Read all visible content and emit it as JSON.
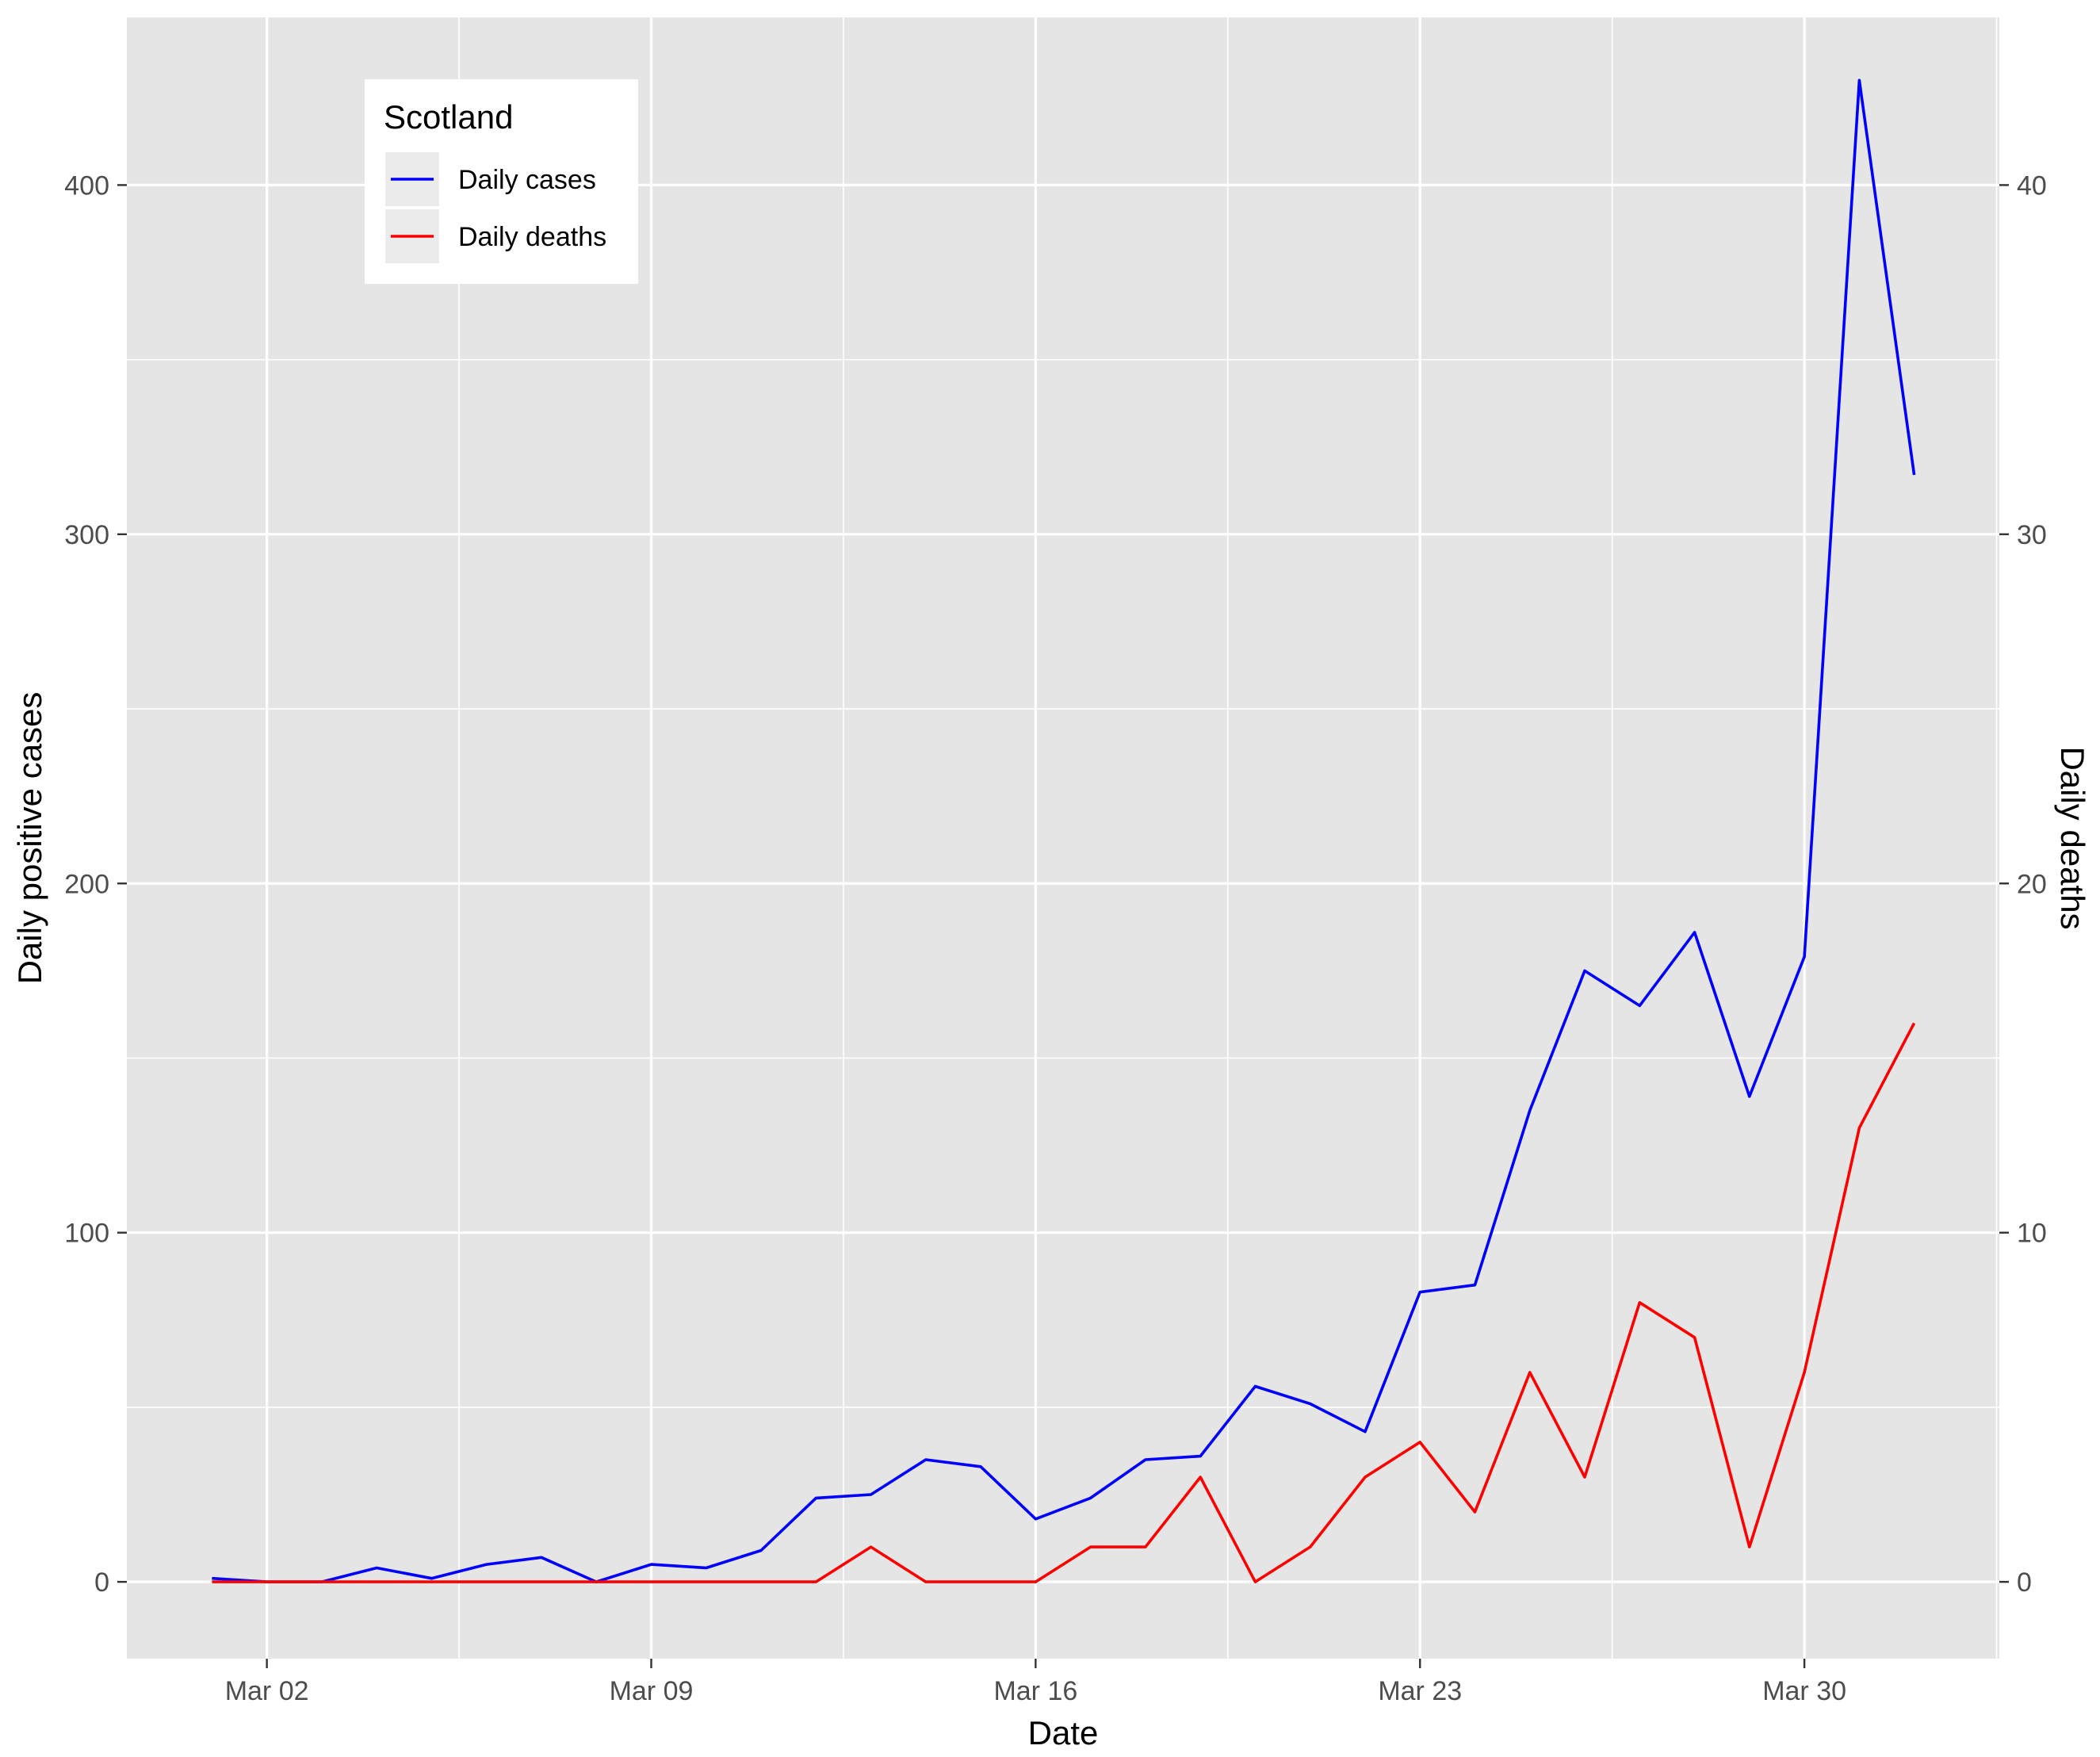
{
  "chart_data": {
    "type": "line",
    "title": "",
    "xlabel": "Date",
    "ylabel": "Daily positive cases",
    "y2label": "Daily deaths",
    "x_tick_labels": [
      "Mar 02",
      "Mar 09",
      "Mar 16",
      "Mar 23",
      "Mar 30"
    ],
    "y_ticks": [
      0,
      100,
      200,
      300,
      400
    ],
    "y2_ticks": [
      0,
      10,
      20,
      30,
      40
    ],
    "ylim": [
      -22,
      448
    ],
    "y2lim": [
      -2.2,
      44.8
    ],
    "grid": true,
    "legend": {
      "title": "Scotland",
      "position": "top-left",
      "entries": [
        "Daily cases",
        "Daily deaths"
      ]
    },
    "x": [
      "2020-03-01",
      "2020-03-02",
      "2020-03-03",
      "2020-03-04",
      "2020-03-05",
      "2020-03-06",
      "2020-03-07",
      "2020-03-08",
      "2020-03-09",
      "2020-03-10",
      "2020-03-11",
      "2020-03-12",
      "2020-03-13",
      "2020-03-14",
      "2020-03-15",
      "2020-03-16",
      "2020-03-17",
      "2020-03-18",
      "2020-03-19",
      "2020-03-20",
      "2020-03-21",
      "2020-03-22",
      "2020-03-23",
      "2020-03-24",
      "2020-03-25",
      "2020-03-26",
      "2020-03-27",
      "2020-03-28",
      "2020-03-29",
      "2020-03-30",
      "2020-03-31",
      "2020-04-01"
    ],
    "series": [
      {
        "name": "Daily cases",
        "color": "#0000ff",
        "axis": "left",
        "values": [
          1,
          0,
          0,
          4,
          1,
          5,
          7,
          0,
          5,
          4,
          9,
          24,
          25,
          35,
          33,
          18,
          24,
          35,
          36,
          56,
          51,
          43,
          83,
          85,
          135,
          175,
          165,
          186,
          139,
          179,
          430,
          317
        ]
      },
      {
        "name": "Daily deaths",
        "color": "#ff0000",
        "axis": "right",
        "values": [
          0,
          0,
          0,
          0,
          0,
          0,
          0,
          0,
          0,
          0,
          0,
          0,
          1,
          0,
          0,
          0,
          1,
          1,
          3,
          0,
          1,
          3,
          4,
          2,
          6,
          3,
          8,
          7,
          1,
          6,
          13,
          16
        ]
      }
    ],
    "colors": {
      "panel_background": "#e5e5e5",
      "grid": "#ffffff"
    }
  }
}
